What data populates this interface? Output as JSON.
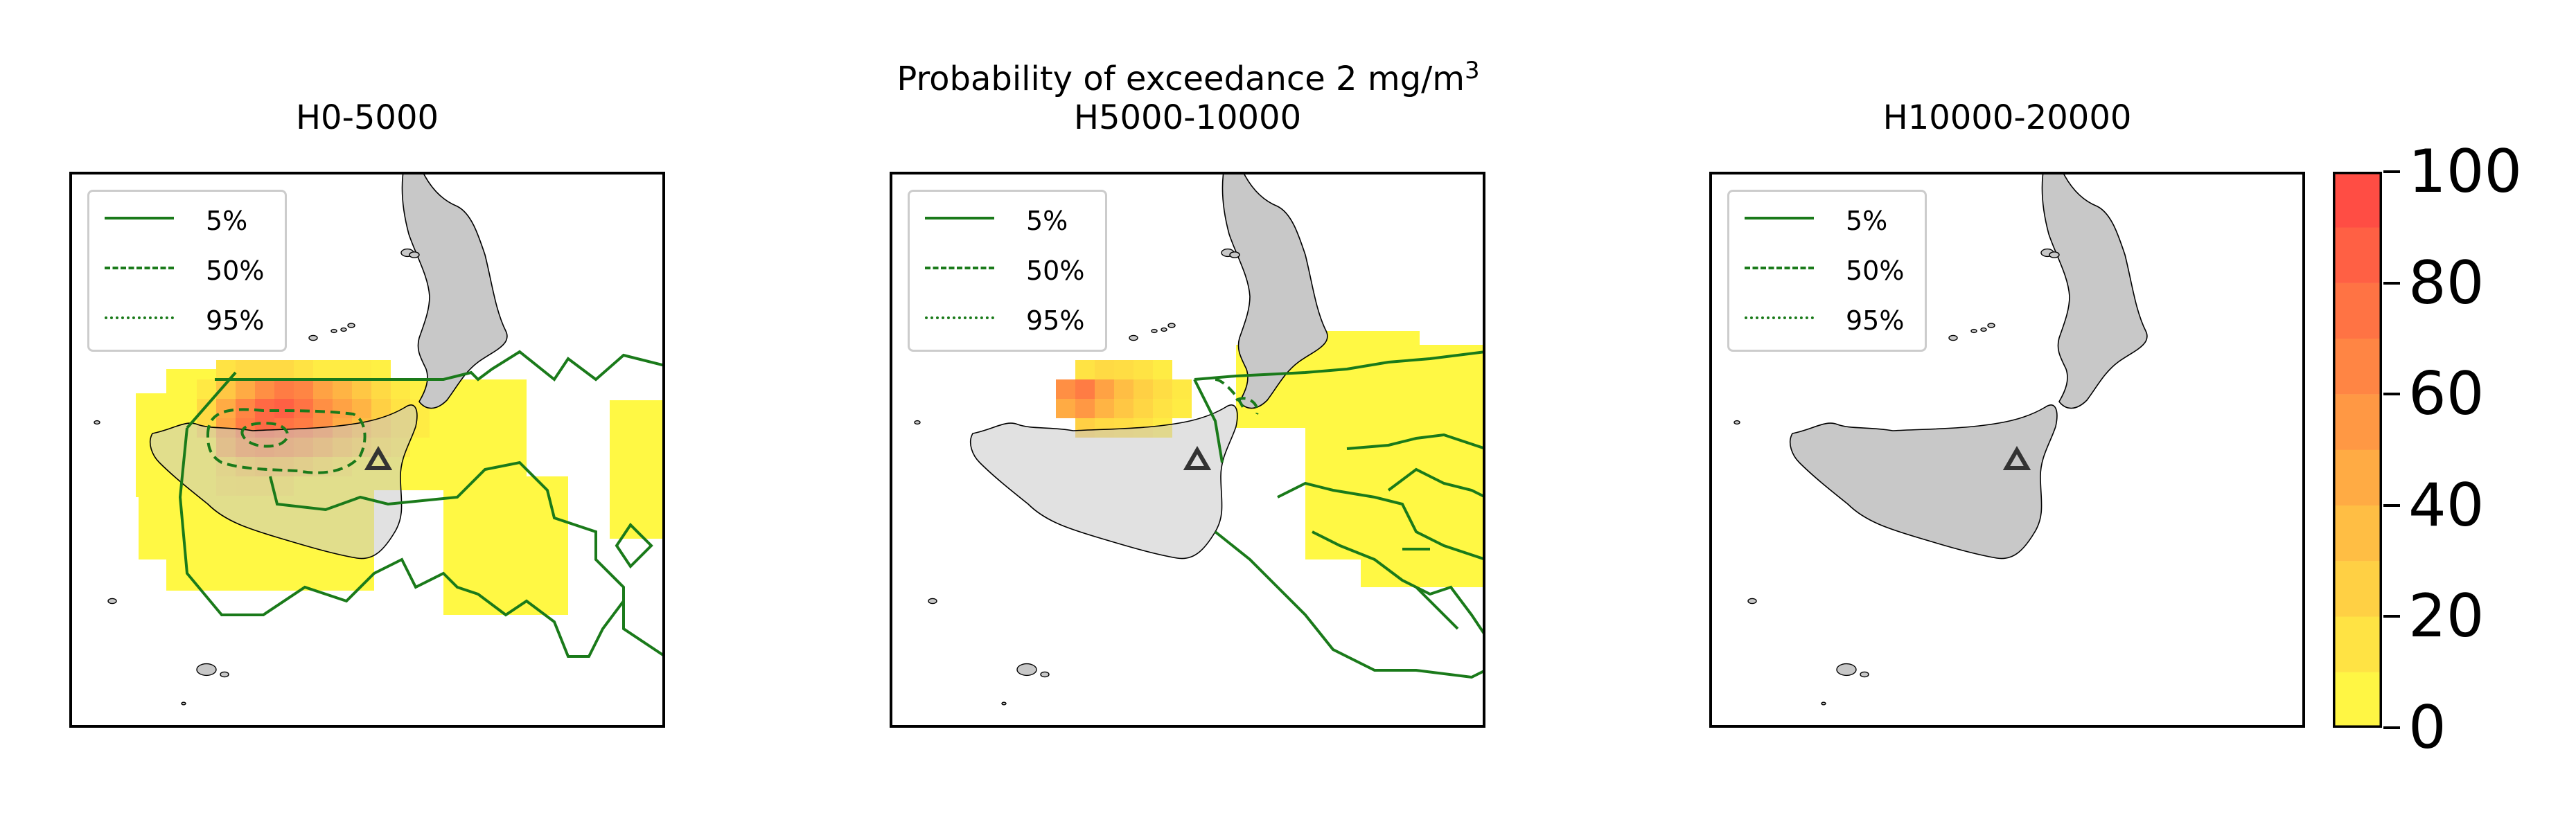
{
  "figure": {
    "suptitle_main": "Probability of exceedance 2 mg/m",
    "suptitle_sup": "3"
  },
  "panels": [
    {
      "title": "H0-5000"
    },
    {
      "title": "H5000-10000"
    },
    {
      "title": "H10000-20000"
    }
  ],
  "legend": {
    "entries": [
      {
        "label": "5%",
        "style": "solid"
      },
      {
        "label": "50%",
        "style": "dashed"
      },
      {
        "label": "95%",
        "style": "dotted"
      }
    ],
    "line_color": "#1a7a1a"
  },
  "colorbar": {
    "ticks": [
      "0",
      "20",
      "40",
      "60",
      "80",
      "100"
    ],
    "min": 0,
    "max": 100,
    "colors": [
      "#ffff44",
      "#ff4444"
    ]
  },
  "colors": {
    "land": "#c8c8c8",
    "coast": "#000000",
    "contour": "#1a7a1a",
    "vent_marker": "#333333"
  }
}
